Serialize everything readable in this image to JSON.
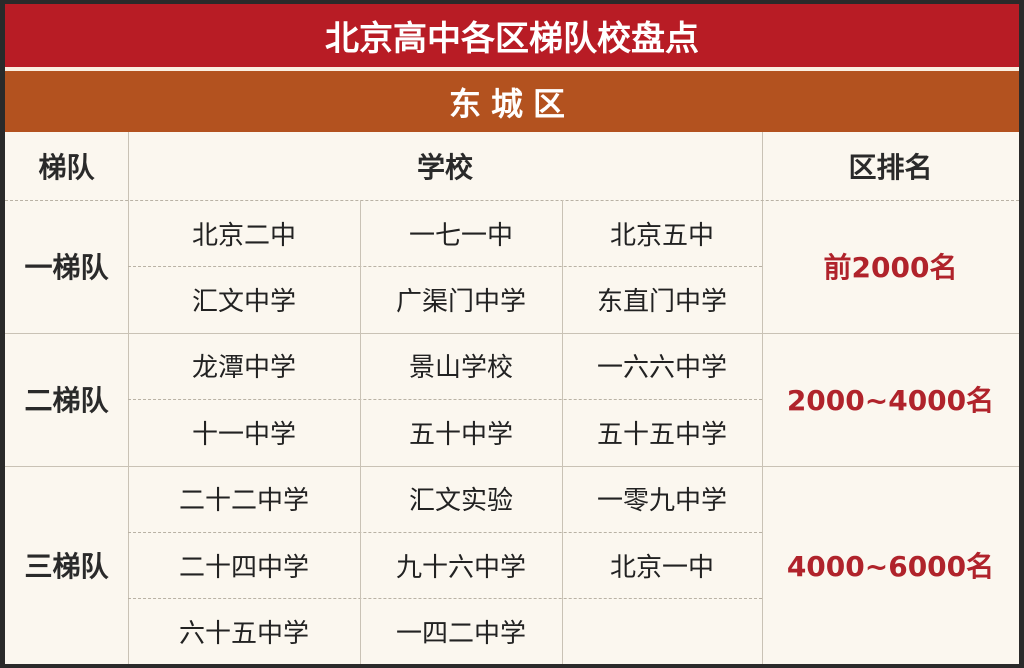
{
  "title": "北京高中各区梯队校盘点",
  "district": "东城区",
  "headers": {
    "tier": "梯队",
    "school": "学校",
    "rank": "区排名"
  },
  "colors": {
    "title_bg": "#b81c25",
    "district_bg": "#b3521f",
    "rank_text": "#b0232b",
    "table_bg": "#fbf7ef"
  },
  "tiers": [
    {
      "name": "一梯队",
      "rank": "前2000名",
      "schools": [
        [
          "北京二中",
          "一七一中",
          "北京五中"
        ],
        [
          "汇文中学",
          "广渠门中学",
          "东直门中学"
        ]
      ]
    },
    {
      "name": "二梯队",
      "rank": "2000~4000名",
      "schools": [
        [
          "龙潭中学",
          "景山学校",
          "一六六中学"
        ],
        [
          "十一中学",
          "五十中学",
          "五十五中学"
        ]
      ]
    },
    {
      "name": "三梯队",
      "rank": "4000~6000名",
      "schools": [
        [
          "二十二中学",
          "汇文实验",
          "一零九中学"
        ],
        [
          "二十四中学",
          "九十六中学",
          "北京一中"
        ],
        [
          "六十五中学",
          "一四二中学",
          ""
        ]
      ]
    }
  ]
}
